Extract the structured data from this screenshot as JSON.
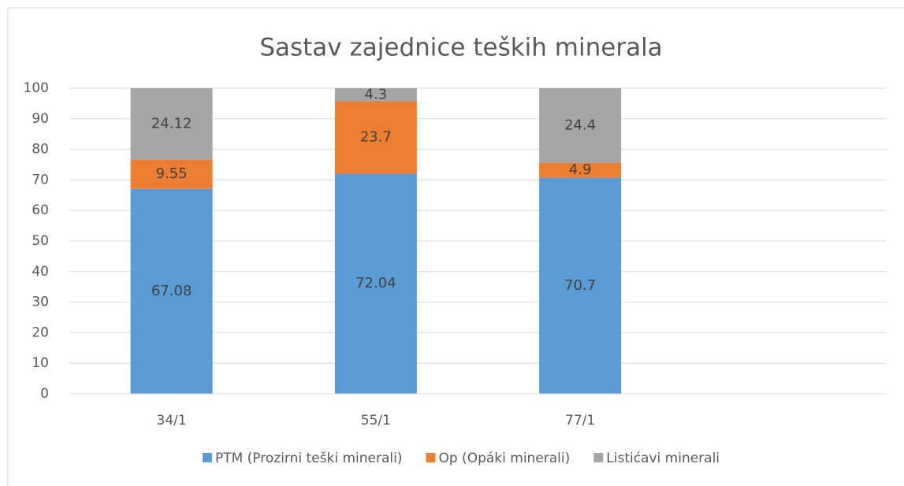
{
  "chart_data": {
    "type": "stacked_bar",
    "title": "Sastav zajednice teških minerala",
    "categories": [
      "34/1",
      "55/1",
      "77/1",
      null
    ],
    "series": [
      {
        "name": "PTM (Prozirni teški minerali)",
        "color": "#5b9bd5",
        "values": [
          67.08,
          72.04,
          70.7,
          null
        ]
      },
      {
        "name": "Op (Opáki minerali)",
        "color": "#ed7d31",
        "values": [
          9.55,
          23.7,
          4.9,
          null
        ]
      },
      {
        "name": "Listićavi minerali",
        "color": "#a5a5a5",
        "values": [
          24.12,
          4.3,
          24.4,
          null
        ]
      }
    ],
    "ylim": [
      0,
      100
    ],
    "yticks": [
      0,
      10,
      20,
      30,
      40,
      50,
      60,
      70,
      80,
      90,
      100
    ],
    "grid": true,
    "legend": "bottom"
  }
}
